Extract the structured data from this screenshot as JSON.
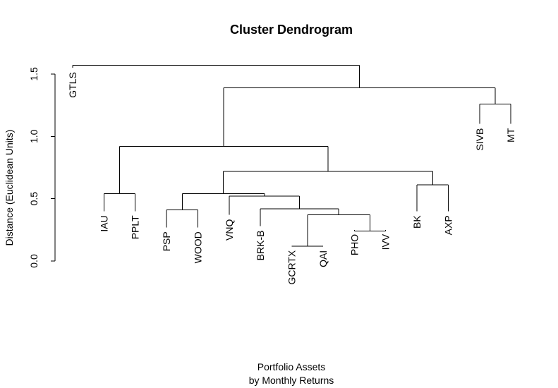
{
  "chart_data": {
    "type": "dendrogram",
    "title": "Cluster Dendrogram",
    "xlabel": "Portfolio Assets",
    "xsublabel": "by Monthly Returns",
    "ylabel": "Distance (Euclidean Units)",
    "ylim": [
      0,
      1.6
    ],
    "yticks": [
      0.0,
      0.5,
      1.0,
      1.5
    ],
    "ytick_labels": [
      "0.0",
      "0.5",
      "1.0",
      "1.5"
    ],
    "grid": false,
    "leaves": [
      {
        "label": "GTLS",
        "end": 1.55
      },
      {
        "label": "IAU",
        "end": 0.4
      },
      {
        "label": "PPLT",
        "end": 0.4
      },
      {
        "label": "PSP",
        "end": 0.27
      },
      {
        "label": "WOOD",
        "end": 0.27
      },
      {
        "label": "VNQ",
        "end": 0.37
      },
      {
        "label": "BRK-B",
        "end": 0.28
      },
      {
        "label": "GCRTX",
        "end": 0.12
      },
      {
        "label": "QAI",
        "end": 0.12
      },
      {
        "label": "PHO",
        "end": 0.25
      },
      {
        "label": "IVV",
        "end": 0.25
      },
      {
        "label": "BK",
        "end": 0.4
      },
      {
        "label": "AXP",
        "end": 0.4
      },
      {
        "label": "SIVB",
        "end": 1.1
      },
      {
        "label": "MT",
        "end": 1.1
      }
    ],
    "merges": [
      {
        "a": -8,
        "b": -9,
        "height": 0.12
      },
      {
        "a": -10,
        "b": -11,
        "height": 0.24
      },
      {
        "a": 1,
        "b": 2,
        "height": 0.37
      },
      {
        "a": -7,
        "b": 3,
        "height": 0.42
      },
      {
        "a": -4,
        "b": -5,
        "height": 0.41
      },
      {
        "a": -6,
        "b": 4,
        "height": 0.52
      },
      {
        "a": 5,
        "b": 6,
        "height": 0.54
      },
      {
        "a": -2,
        "b": -3,
        "height": 0.54
      },
      {
        "a": -12,
        "b": -13,
        "height": 0.61
      },
      {
        "a": 7,
        "b": 9,
        "height": 0.72
      },
      {
        "a": 8,
        "b": 10,
        "height": 0.92
      },
      {
        "a": -14,
        "b": -15,
        "height": 1.26
      },
      {
        "a": 11,
        "b": 12,
        "height": 1.39
      },
      {
        "a": -1,
        "b": 13,
        "height": 1.57
      }
    ]
  }
}
